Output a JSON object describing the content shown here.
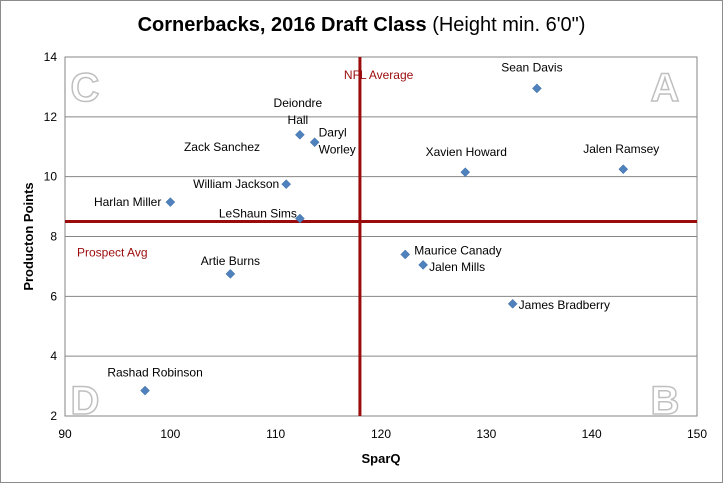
{
  "chart_data": {
    "type": "scatter",
    "title": "Cornerbacks, 2016 Draft Class",
    "subtitle": "(Height min. 6'0\")",
    "xlabel": "SparQ",
    "ylabel": "Producton Points",
    "xlim": [
      90,
      150
    ],
    "ylim": [
      2,
      14
    ],
    "xticks": [
      "90",
      "100",
      "110",
      "120",
      "130",
      "140",
      "150"
    ],
    "yticks": [
      "2",
      "4",
      "6",
      "8",
      "10",
      "12",
      "14"
    ],
    "grid": "horizontal",
    "points": [
      {
        "name": "Sean Davis",
        "x": 134.8,
        "y": 12.95
      },
      {
        "name": "Deiondre Hall",
        "x": 112.3,
        "y": 11.4
      },
      {
        "name": "Daryl Worley",
        "x": 113.7,
        "y": 11.15
      },
      {
        "name": "Xavien Howard",
        "x": 128.0,
        "y": 10.15
      },
      {
        "name": "Jalen Ramsey",
        "x": 143.0,
        "y": 10.25
      },
      {
        "name": "William Jackson",
        "x": 111.0,
        "y": 9.75
      },
      {
        "name": "Harlan Miller",
        "x": 100.0,
        "y": 9.15
      },
      {
        "name": "LeShaun Sims",
        "x": 112.3,
        "y": 8.6
      },
      {
        "name": "Zack Sanchez",
        "x": null,
        "y": null
      },
      {
        "name": "Maurice Canady",
        "x": 122.3,
        "y": 7.4
      },
      {
        "name": "Jalen Mills",
        "x": 124.0,
        "y": 7.05
      },
      {
        "name": "Artie Burns",
        "x": 105.7,
        "y": 6.75
      },
      {
        "name": "James Bradberry",
        "x": 132.5,
        "y": 5.75
      },
      {
        "name": "Rashad Robinson",
        "x": 97.6,
        "y": 2.85
      }
    ],
    "reference_lines": {
      "nfl_average": {
        "label": "NFL Average",
        "x": 118
      },
      "prospect_avg": {
        "label": "Prospect Avg",
        "y": 8.5
      }
    },
    "quadrants": [
      "A",
      "B",
      "C",
      "D"
    ],
    "colors": {
      "marker": "#4f81bd",
      "reference": "#9b0b0b",
      "quadrant_letter": "#d9d9d9",
      "grid": "#868686"
    }
  }
}
